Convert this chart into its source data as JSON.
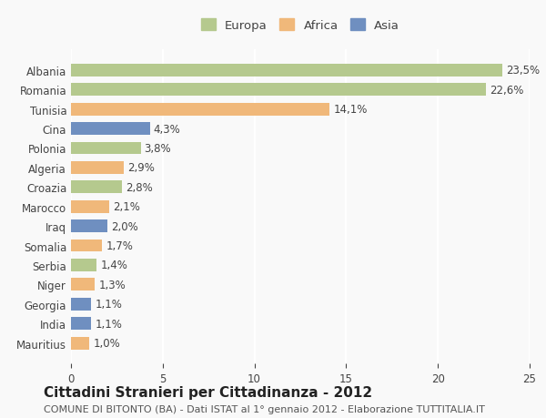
{
  "categories": [
    "Albania",
    "Romania",
    "Tunisia",
    "Cina",
    "Polonia",
    "Algeria",
    "Croazia",
    "Marocco",
    "Iraq",
    "Somalia",
    "Serbia",
    "Niger",
    "Georgia",
    "India",
    "Mauritius"
  ],
  "values": [
    23.5,
    22.6,
    14.1,
    4.3,
    3.8,
    2.9,
    2.8,
    2.1,
    2.0,
    1.7,
    1.4,
    1.3,
    1.1,
    1.1,
    1.0
  ],
  "labels": [
    "23,5%",
    "22,6%",
    "14,1%",
    "4,3%",
    "3,8%",
    "2,9%",
    "2,8%",
    "2,1%",
    "2,0%",
    "1,7%",
    "1,4%",
    "1,3%",
    "1,1%",
    "1,1%",
    "1,0%"
  ],
  "continent": [
    "Europa",
    "Europa",
    "Africa",
    "Asia",
    "Europa",
    "Africa",
    "Europa",
    "Africa",
    "Asia",
    "Africa",
    "Europa",
    "Africa",
    "Asia",
    "Asia",
    "Africa"
  ],
  "colors": {
    "Europa": "#b5c98e",
    "Africa": "#f0b87a",
    "Asia": "#6f8fc0"
  },
  "legend_colors": {
    "Europa": "#b5c98e",
    "Africa": "#f0b87a",
    "Asia": "#6f8fc0"
  },
  "xlim": [
    0,
    25
  ],
  "xticks": [
    0,
    5,
    10,
    15,
    20,
    25
  ],
  "title": "Cittadini Stranieri per Cittadinanza - 2012",
  "subtitle": "COMUNE DI BITONTO (BA) - Dati ISTAT al 1° gennaio 2012 - Elaborazione TUTTITALIA.IT",
  "background_color": "#f9f9f9",
  "grid_color": "#ffffff",
  "bar_height": 0.65,
  "title_fontsize": 11,
  "subtitle_fontsize": 8,
  "label_fontsize": 8.5,
  "tick_fontsize": 8.5,
  "legend_fontsize": 9.5
}
